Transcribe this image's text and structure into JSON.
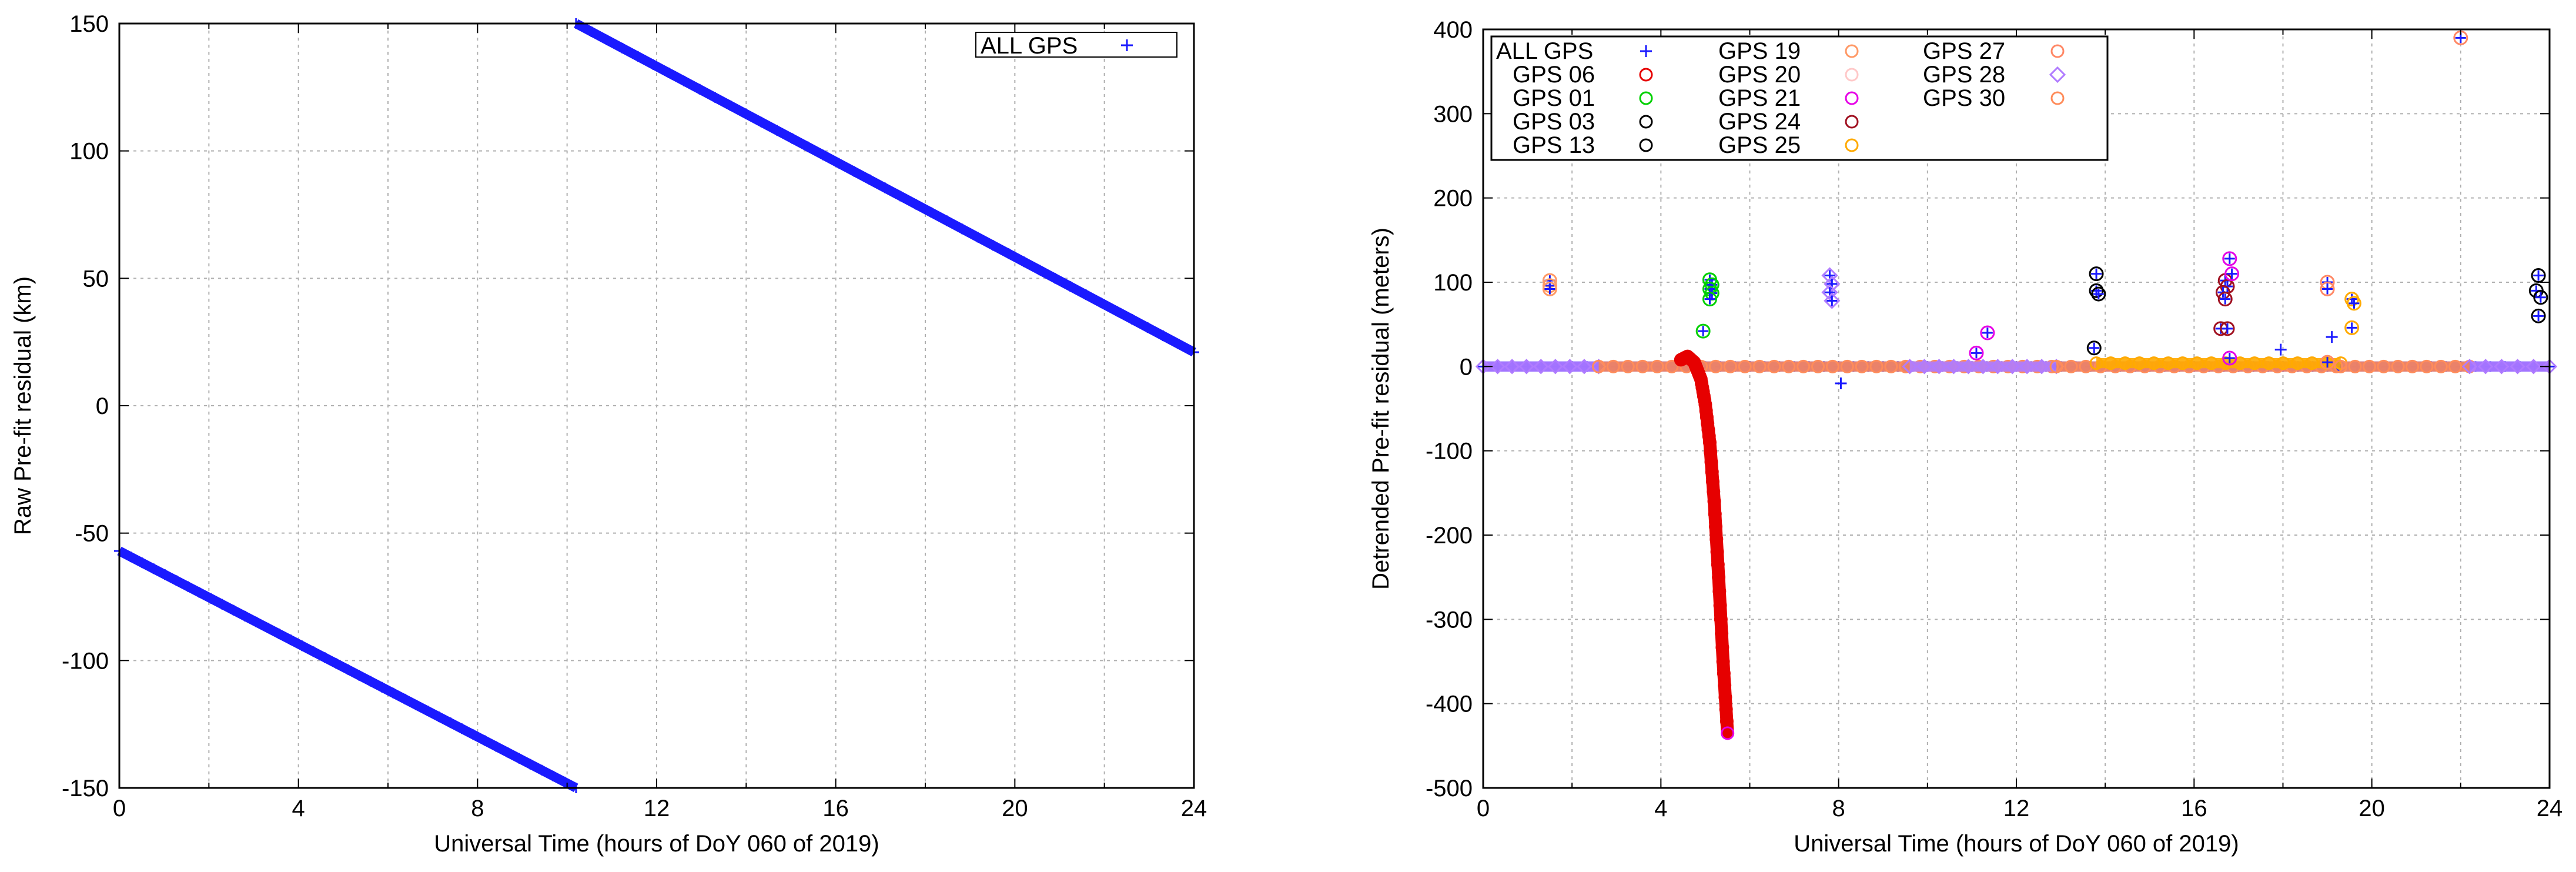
{
  "chart_data": [
    {
      "type": "scatter",
      "xlabel": "Universal Time (hours of DoY 060 of 2019)",
      "ylabel": "Raw Pre-fit residual (km)",
      "xlim": [
        0,
        24
      ],
      "ylim": [
        -150,
        150
      ],
      "x_ticks": [
        0,
        4,
        8,
        12,
        16,
        20,
        24
      ],
      "y_ticks": [
        -150,
        -100,
        -50,
        0,
        50,
        100,
        150
      ],
      "grid": true,
      "legend_position": "top-right",
      "series": [
        {
          "name": "ALL GPS",
          "marker": "+",
          "color": "#1a1aff",
          "segments": [
            {
              "x": [
                0,
                10.2
              ],
              "y": [
                -57,
                -150
              ]
            },
            {
              "x": [
                10.2,
                24
              ],
              "y": [
                150,
                21
              ]
            }
          ]
        }
      ]
    },
    {
      "type": "scatter",
      "xlabel": "Universal Time (hours of DoY 060 of 2019)",
      "ylabel": "Detrended Pre-fit residual (meters)",
      "xlim": [
        0,
        24
      ],
      "ylim": [
        -500,
        400
      ],
      "x_ticks": [
        0,
        4,
        8,
        12,
        16,
        20,
        24
      ],
      "y_ticks": [
        -500,
        -400,
        -300,
        -200,
        -100,
        0,
        100,
        200,
        300,
        400
      ],
      "grid": true,
      "legend_position": "top-left",
      "legend": [
        {
          "name": "ALL GPS",
          "marker": "+",
          "color": "#1a1aff"
        },
        {
          "name": "GPS 06",
          "marker": "circle",
          "color": "#e60000"
        },
        {
          "name": "GPS 01",
          "marker": "circle",
          "color": "#00d000"
        },
        {
          "name": "GPS 03",
          "marker": "circle",
          "color": "#000000"
        },
        {
          "name": "GPS 13",
          "marker": "circle",
          "color": "#000000"
        },
        {
          "name": "GPS 19",
          "marker": "circle",
          "color": "#ff9966"
        },
        {
          "name": "GPS 20",
          "marker": "circle",
          "color": "#ffc8c8"
        },
        {
          "name": "GPS 21",
          "marker": "circle",
          "color": "#e600e6"
        },
        {
          "name": "GPS 24",
          "marker": "circle",
          "color": "#a01020"
        },
        {
          "name": "GPS 25",
          "marker": "circle",
          "color": "#ffaa00"
        },
        {
          "name": "GPS 27",
          "marker": "circle",
          "color": "#ff8866"
        },
        {
          "name": "GPS 28",
          "marker": "diamond",
          "color": "#b07cff"
        },
        {
          "name": "GPS 30",
          "marker": "circle",
          "color": "#ff8c5a"
        }
      ],
      "baseline_bands": [
        {
          "series": "ALL GPS",
          "x": [
            0,
            24
          ],
          "y": [
            -6,
            6
          ],
          "color": "#1a1aff"
        },
        {
          "series": "GPS 28",
          "x": [
            0,
            2.6
          ],
          "y": [
            -6,
            6
          ],
          "color": "#b07cff"
        },
        {
          "series": "GPS 30",
          "x": [
            2.6,
            12.8
          ],
          "y": [
            -6,
            6
          ],
          "color": "#ff8c5a"
        },
        {
          "series": "GPS 28",
          "x": [
            9.6,
            12.9
          ],
          "y": [
            -6,
            6
          ],
          "color": "#b07cff"
        },
        {
          "series": "GPS 30",
          "x": [
            12.9,
            19.2
          ],
          "y": [
            -6,
            6
          ],
          "color": "#ff8c5a"
        },
        {
          "series": "GPS 25",
          "x": [
            13.8,
            19.3
          ],
          "y": [
            -2,
            10
          ],
          "color": "#ffaa00"
        },
        {
          "series": "GPS 30",
          "x": [
            19.3,
            22.2
          ],
          "y": [
            -6,
            6
          ],
          "color": "#ff8c5a"
        },
        {
          "series": "GPS 28",
          "x": [
            22.2,
            24
          ],
          "y": [
            -6,
            6
          ],
          "color": "#b07cff"
        }
      ],
      "curves": [
        {
          "series": "GPS 06",
          "color": "#e60000",
          "x": [
            4.45,
            4.6,
            4.75,
            4.9,
            5.0,
            5.1,
            5.2,
            5.3,
            5.4,
            5.5
          ],
          "y": [
            8,
            12,
            5,
            -15,
            -45,
            -90,
            -160,
            -250,
            -350,
            -435
          ]
        }
      ],
      "outliers": [
        {
          "series": "GPS 20",
          "color": "#ff9966",
          "x": [
            1.5,
            1.5,
            1.5
          ],
          "y": [
            102,
            96,
            92
          ]
        },
        {
          "series": "GPS 01",
          "color": "#00d000",
          "x": [
            5.1,
            5.15,
            5.1,
            5.15,
            5.1,
            4.95
          ],
          "y": [
            103,
            97,
            92,
            87,
            80,
            42
          ]
        },
        {
          "series": "GPS 28",
          "color": "#b07cff",
          "x": [
            7.8,
            7.85,
            7.8,
            7.85
          ],
          "y": [
            108,
            98,
            88,
            78
          ]
        },
        {
          "series": "ALL GPS",
          "color": "#1a1aff",
          "x": [
            8.05
          ],
          "y": [
            -20
          ]
        },
        {
          "series": "GPS 21",
          "color": "#e600e6",
          "x": [
            11.1,
            11.35
          ],
          "y": [
            16,
            40
          ]
        },
        {
          "series": "GPS 13",
          "color": "#000000",
          "x": [
            13.8,
            13.8,
            13.85,
            13.75
          ],
          "y": [
            110,
            90,
            86,
            22
          ]
        },
        {
          "series": "GPS 24",
          "color": "#a01020",
          "x": [
            16.7,
            16.75,
            16.65,
            16.7,
            16.6,
            16.75
          ],
          "y": [
            102,
            95,
            88,
            80,
            45,
            45
          ]
        },
        {
          "series": "GPS 21",
          "color": "#e600e6",
          "x": [
            16.8,
            16.85,
            16.8
          ],
          "y": [
            128,
            110,
            10
          ]
        },
        {
          "series": "ALL GPS",
          "color": "#1a1aff",
          "x": [
            17.95,
            19.1
          ],
          "y": [
            20,
            35
          ]
        },
        {
          "series": "GPS 27",
          "color": "#ff8866",
          "x": [
            19.0,
            19.0,
            19.0
          ],
          "y": [
            100,
            92,
            5
          ]
        },
        {
          "series": "GPS 25",
          "color": "#ffaa00",
          "x": [
            19.55,
            19.6,
            19.55
          ],
          "y": [
            80,
            75,
            46
          ]
        },
        {
          "series": "GPS 27",
          "color": "#ff8866",
          "x": [
            22.0
          ],
          "y": [
            390
          ]
        },
        {
          "series": "GPS 13",
          "color": "#000000",
          "x": [
            23.75,
            23.7,
            23.8,
            23.75
          ],
          "y": [
            108,
            90,
            82,
            60
          ]
        }
      ]
    }
  ]
}
